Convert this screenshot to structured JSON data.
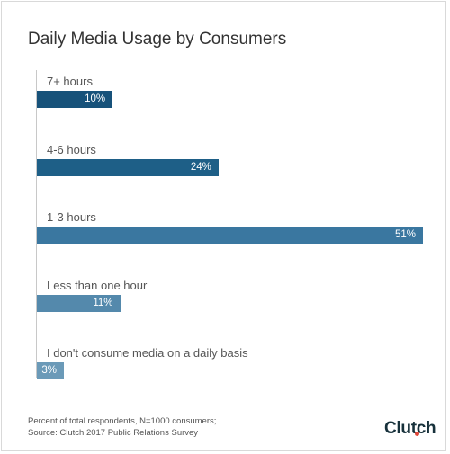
{
  "chart_data": {
    "type": "bar",
    "orientation": "horizontal",
    "title": "Daily Media Usage by Consumers",
    "categories": [
      "7+ hours",
      "4-6 hours",
      "1-3 hours",
      "Less than one hour",
      "I don't consume media on a daily basis"
    ],
    "values": [
      10,
      24,
      51,
      11,
      3
    ],
    "value_labels": [
      "10%",
      "24%",
      "51%",
      "11%",
      "3%"
    ],
    "xlim": [
      0,
      51
    ],
    "grid": false,
    "colors": [
      "#17527a",
      "#1e5f87",
      "#3a77a0",
      "#5489ac",
      "#6b9ab8"
    ]
  },
  "footnote": {
    "line1": "Percent of total respondents, N=1000 consumers;",
    "line2": "Source: Clutch 2017 Public Relations Survey"
  },
  "logo": {
    "text": "Clutch",
    "dot_color": "#e0483b"
  }
}
